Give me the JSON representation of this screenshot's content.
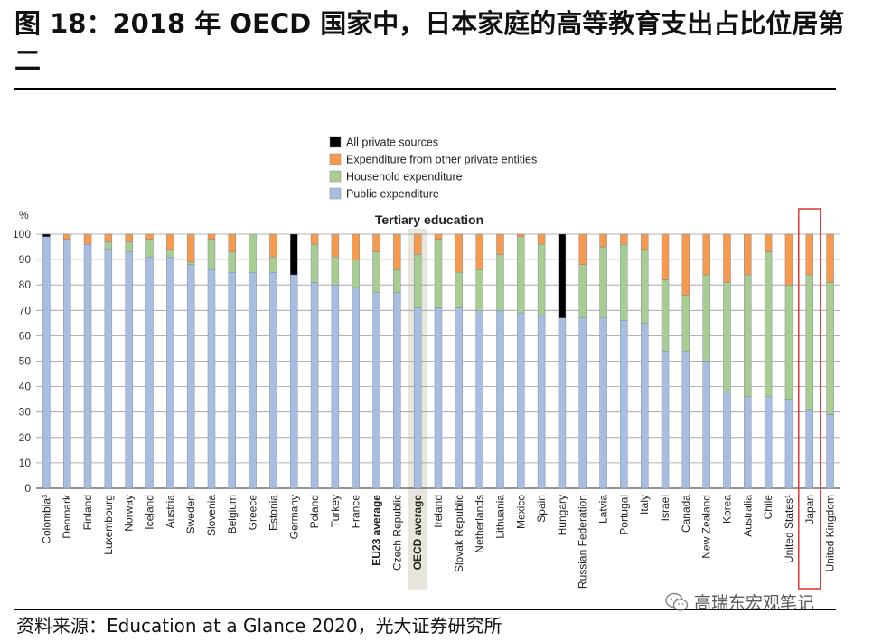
{
  "figure": {
    "title": "图 18：2018 年 OECD 国家中，日本家庭的高等教育支出占比位居第二",
    "source": "资料来源：Education at a Glance 2020，光大证券研究所",
    "watermark": "高瑞东宏观笔记",
    "watermark_icon": "wechat-icon"
  },
  "colors": {
    "public": "#a8bde0",
    "household": "#a8cc92",
    "other_private": "#f59a4e",
    "all_private": "#000000",
    "highlight_band": "#e7e5dc",
    "highlight_box": "#e04040"
  },
  "chart_data": {
    "type": "bar",
    "stacked": true,
    "title": "Tertiary education",
    "ylabel": "%",
    "ylim": [
      0,
      100
    ],
    "yticks": [
      0,
      10,
      20,
      30,
      40,
      50,
      60,
      70,
      80,
      90,
      100
    ],
    "grid": "horizontal",
    "legend_position": "top-center",
    "categories": [
      "Colombia³",
      "Denmark",
      "Finland",
      "Luxembourg",
      "Norway",
      "Iceland",
      "Austria",
      "Sweden",
      "Slovenia",
      "Belgium",
      "Greece",
      "Estonia",
      "Germany",
      "Poland",
      "Turkey",
      "France",
      "EU23 average",
      "Czech Republic",
      "OECD average",
      "Ireland",
      "Slovak Republic",
      "Netherlands",
      "Lithuania",
      "Mexico",
      "Spain",
      "Hungary",
      "Russian Federation",
      "Latvia",
      "Portugal",
      "Italy",
      "Israel",
      "Canada",
      "New Zealand",
      "Korea",
      "Australia",
      "Chile",
      "United States¹",
      "Japan",
      "United Kingdom"
    ],
    "bold_categories": [
      "EU23 average",
      "OECD average"
    ],
    "shaded_category": "OECD average",
    "boxed_category": "Japan",
    "series": [
      {
        "name": "Public expenditure",
        "color_key": "public",
        "values": [
          99,
          98,
          96,
          94,
          93,
          91,
          91,
          88,
          86,
          85,
          85,
          85,
          84,
          81,
          80,
          79,
          77,
          77,
          71,
          71,
          71,
          70,
          70,
          69,
          68,
          67,
          67,
          67,
          66,
          65,
          54,
          54,
          50,
          38,
          36,
          36,
          35,
          31,
          29
        ]
      },
      {
        "name": "Household expenditure",
        "color_key": "household",
        "values": [
          0,
          0,
          0,
          3,
          4,
          7,
          3,
          1,
          12,
          8,
          15,
          6,
          0,
          15,
          11,
          11,
          16,
          9,
          21,
          27,
          14,
          16,
          22,
          30,
          28,
          0,
          21,
          28,
          30,
          29,
          28,
          22,
          34,
          43,
          48,
          57,
          45,
          53,
          52
        ]
      },
      {
        "name": "Expenditure from other private entities",
        "color_key": "other_private",
        "values": [
          0,
          2,
          4,
          3,
          3,
          2,
          6,
          11,
          2,
          7,
          0,
          9,
          0,
          4,
          9,
          10,
          7,
          14,
          8,
          2,
          15,
          14,
          8,
          1,
          4,
          0,
          12,
          5,
          4,
          6,
          18,
          24,
          16,
          19,
          16,
          7,
          20,
          16,
          19
        ]
      },
      {
        "name": "All private sources",
        "color_key": "all_private",
        "values": [
          1,
          0,
          0,
          0,
          0,
          0,
          0,
          0,
          0,
          0,
          0,
          0,
          16,
          0,
          0,
          0,
          0,
          0,
          0,
          0,
          0,
          0,
          0,
          0,
          0,
          33,
          0,
          0,
          0,
          0,
          0,
          0,
          0,
          0,
          0,
          0,
          0,
          0,
          0
        ]
      }
    ],
    "legend_order": [
      "All private sources",
      "Expenditure from other private entities",
      "Household expenditure",
      "Public expenditure"
    ]
  }
}
